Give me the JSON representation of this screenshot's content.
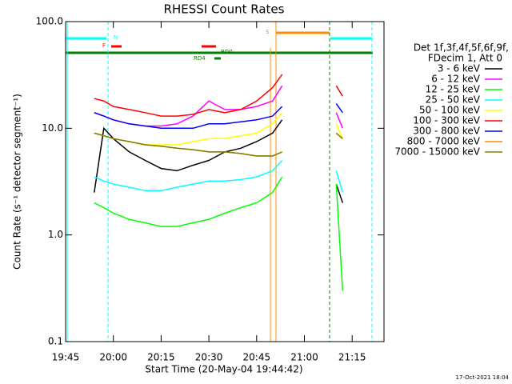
{
  "chart_data": {
    "type": "line",
    "title": "RHESSI Count Rates",
    "x_label": "Start Time (20-May-04 19:44:42)",
    "y_label": "Count Rate (s⁻¹ detector segment⁻¹)",
    "footer": "17-Oct-2021 18:04",
    "legend_header": [
      "Det 1f,3f,4f,5f,6f,9f,",
      "FDecim 1, Att 0"
    ],
    "annotations": [
      "N",
      "F",
      "RD0",
      "RD4",
      "S"
    ],
    "log_scale": true,
    "xlim": [
      "19:45",
      "21:25"
    ],
    "xticks": [
      "19:45",
      "20:00",
      "20:15",
      "20:30",
      "20:45",
      "21:00",
      "21:15"
    ],
    "ylim": [
      0.1,
      100
    ],
    "yticks": [
      0.1,
      {
        "value": 1,
        "label": "1.0"
      },
      {
        "value": 10,
        "label": "10.0"
      },
      {
        "value": 100,
        "label": "100.0"
      }
    ],
    "x": [
      "19:54",
      "19:57",
      "20:00",
      "20:05",
      "20:10",
      "20:15",
      "20:20",
      "20:25",
      "20:30",
      "20:35",
      "20:40",
      "20:45",
      "20:50",
      "20:53",
      "21:00",
      "21:10",
      "21:12"
    ],
    "series": [
      {
        "name": "3 - 6 keV",
        "color": "#000000",
        "values": [
          2.5,
          10,
          8,
          6,
          5,
          4.2,
          4,
          4.5,
          5,
          6,
          6.5,
          7.5,
          9,
          12,
          null,
          3,
          2
        ]
      },
      {
        "name": "6 - 12 keV",
        "color": "#ff00ff",
        "values": [
          14,
          13,
          12,
          11,
          10.5,
          10.5,
          11,
          13,
          18,
          15,
          15,
          16,
          18,
          25,
          null,
          14,
          10
        ]
      },
      {
        "name": "12 - 25 keV",
        "color": "#00ff00",
        "values": [
          2,
          1.8,
          1.6,
          1.4,
          1.3,
          1.2,
          1.2,
          1.3,
          1.4,
          1.6,
          1.8,
          2,
          2.5,
          3.5,
          null,
          3,
          0.3
        ]
      },
      {
        "name": "25 - 50 keV",
        "color": "#00ffff",
        "values": [
          3.5,
          3.2,
          3,
          2.8,
          2.6,
          2.6,
          2.8,
          3,
          3.2,
          3.2,
          3.3,
          3.5,
          4,
          5,
          null,
          4,
          2.5
        ]
      },
      {
        "name": "50 - 100 keV",
        "color": "#ffff00",
        "values": [
          9,
          8.5,
          8,
          7.5,
          7,
          7,
          7,
          7.5,
          8,
          8,
          8.5,
          9,
          11,
          14,
          null,
          11,
          8
        ]
      },
      {
        "name": "100 - 300 keV",
        "color": "#ff0000",
        "values": [
          19,
          18,
          16,
          15,
          14,
          13,
          13,
          13.5,
          15,
          14,
          15,
          18,
          24,
          32,
          null,
          25,
          20
        ]
      },
      {
        "name": "300 - 800 keV",
        "color": "#0000ff",
        "values": [
          14,
          13,
          12,
          11,
          10.5,
          10,
          10,
          10,
          11,
          11,
          11.5,
          12,
          13,
          16,
          null,
          17,
          14
        ]
      },
      {
        "name": "800 - 7000 keV",
        "color": "#ff8c00",
        "values": [
          9,
          8.5,
          8,
          7.5,
          7,
          6.8,
          6.5,
          6.3,
          6,
          6,
          5.8,
          5.5,
          5.5,
          6,
          null,
          9,
          8
        ]
      },
      {
        "name": "7000 - 15000 keV",
        "color": "#808000",
        "values": [
          9,
          8.5,
          8,
          7.5,
          7,
          6.8,
          6.5,
          6.3,
          6,
          6,
          5.8,
          5.5,
          5.5,
          6,
          null,
          9,
          8
        ]
      }
    ]
  }
}
